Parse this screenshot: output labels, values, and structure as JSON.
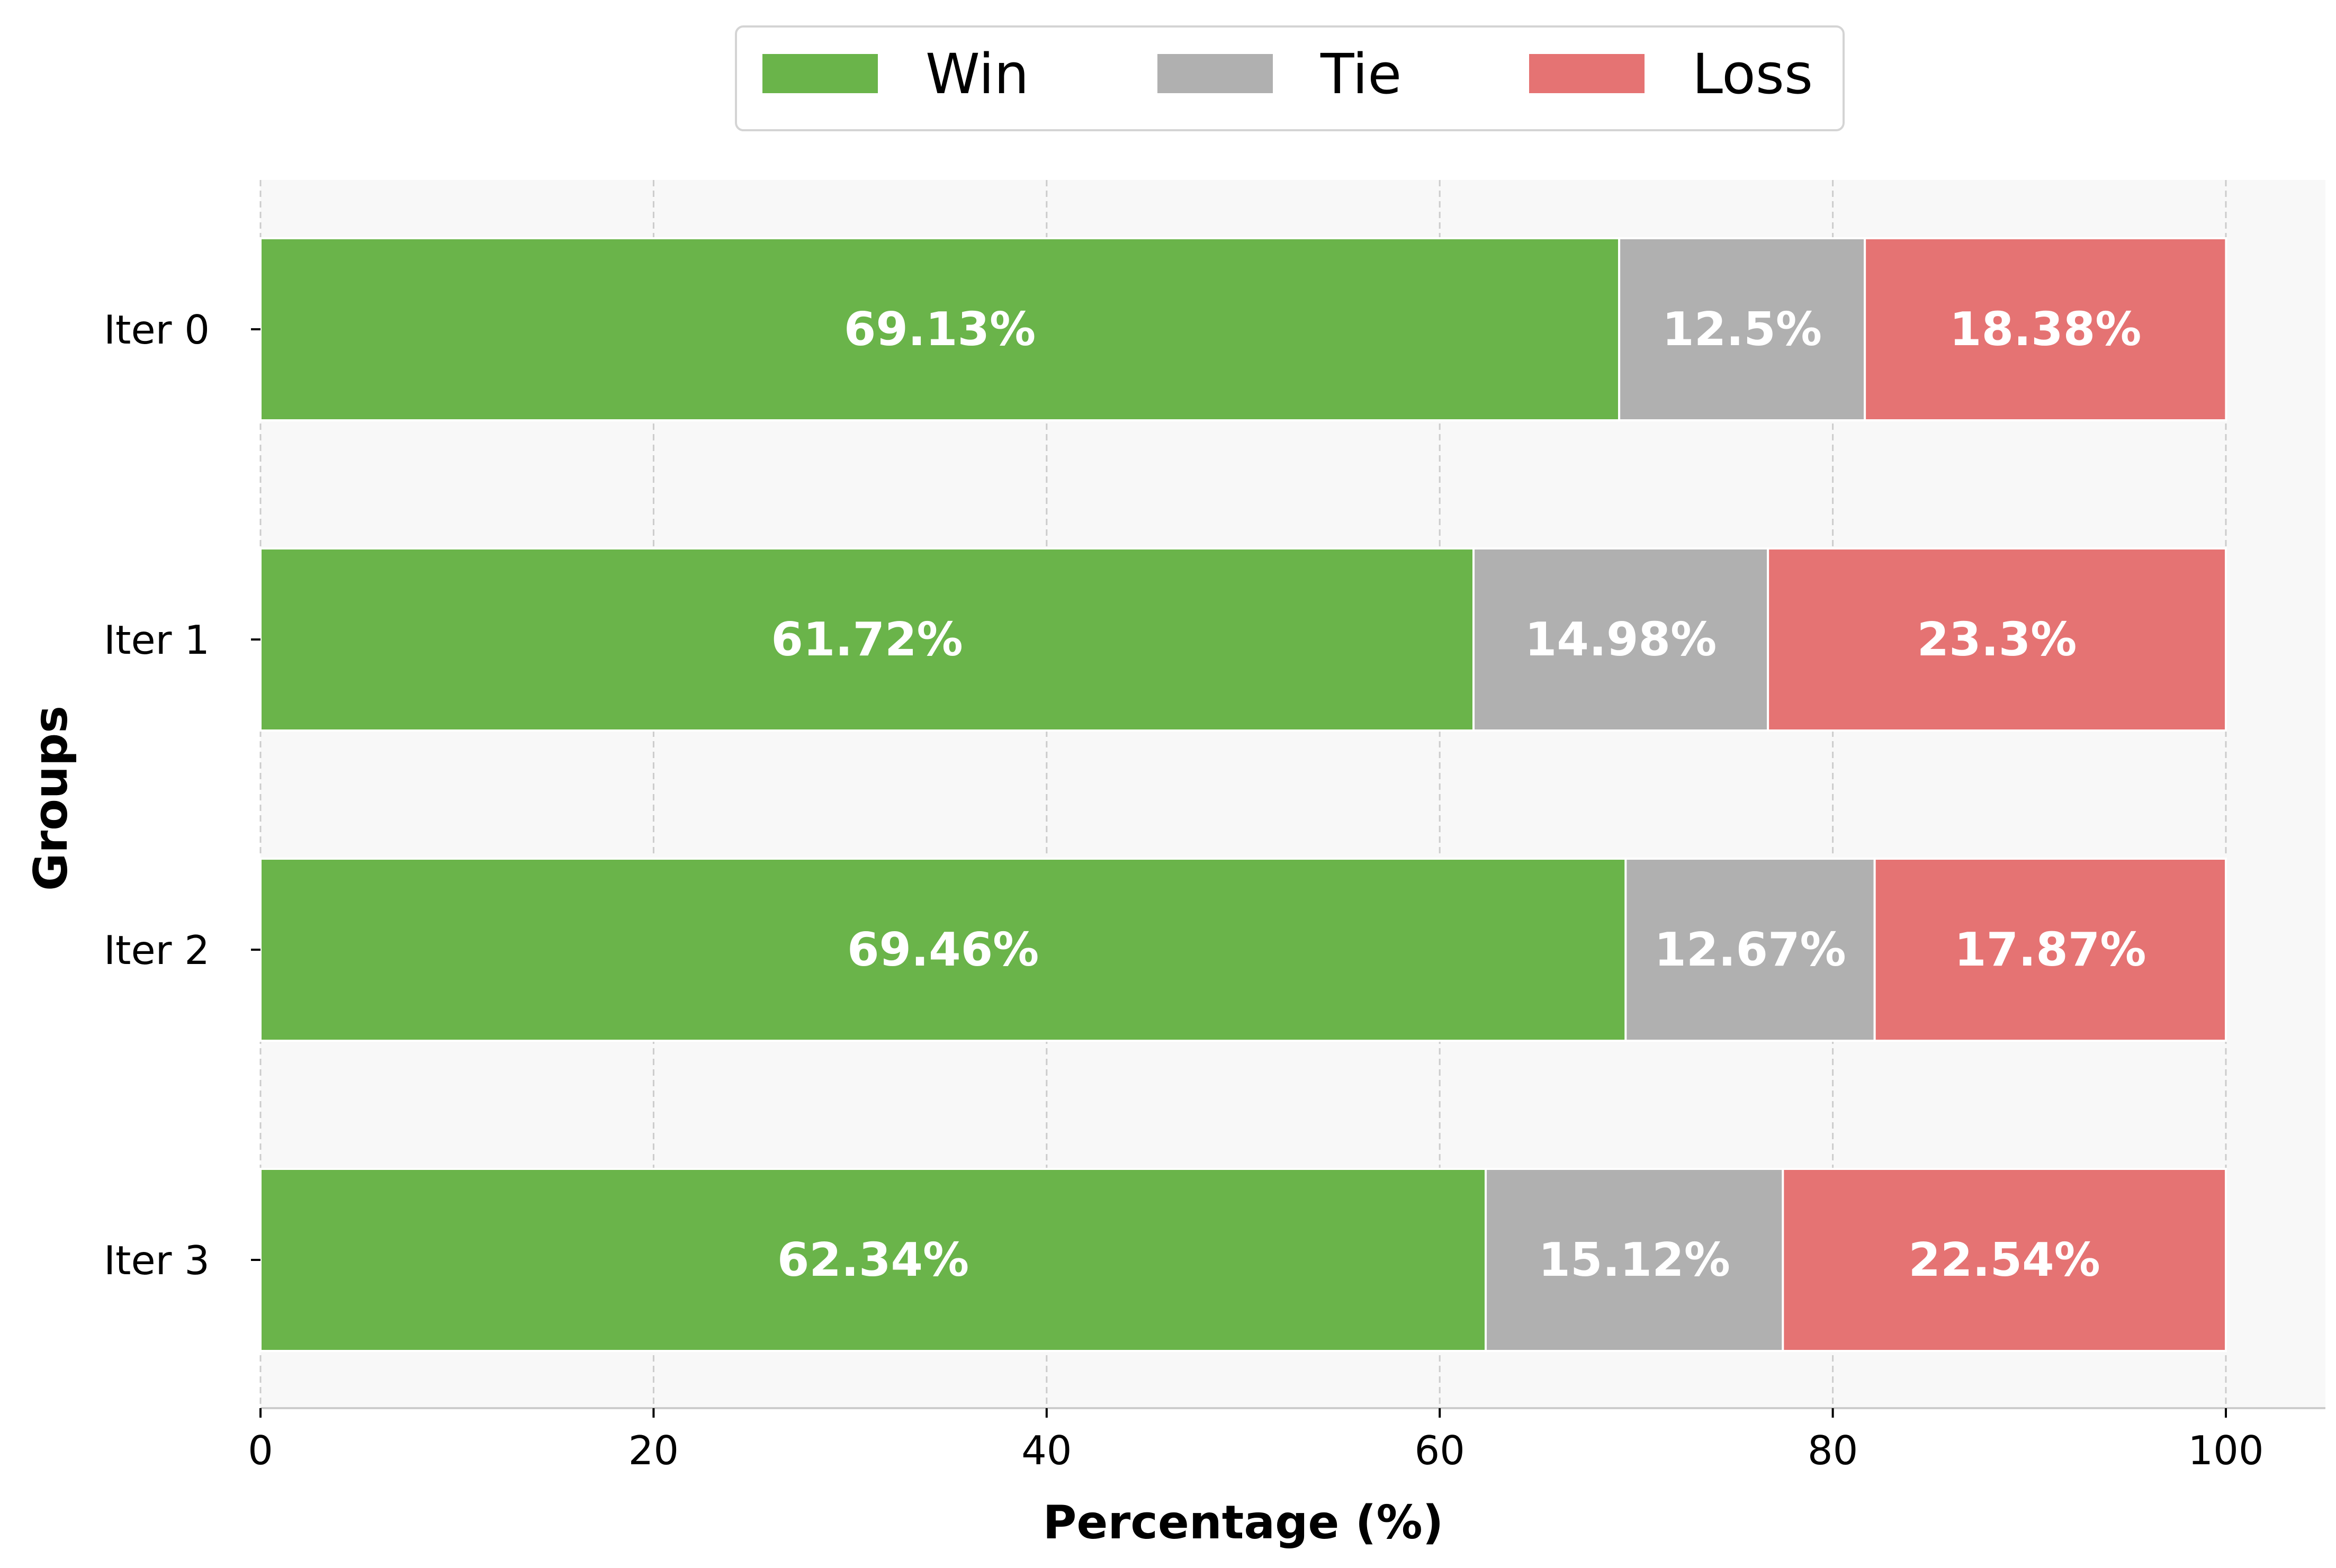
{
  "chart_data": {
    "type": "bar",
    "orientation": "horizontal",
    "stacked": true,
    "categories": [
      "Iter 0",
      "Iter 1",
      "Iter 2",
      "Iter 3"
    ],
    "series": [
      {
        "name": "Win",
        "color": "#6ab44a",
        "values": [
          69.13,
          61.72,
          69.46,
          62.34
        ]
      },
      {
        "name": "Tie",
        "color": "#b0b0b0",
        "values": [
          12.5,
          14.98,
          12.67,
          15.12
        ]
      },
      {
        "name": "Loss",
        "color": "#e57373",
        "values": [
          18.38,
          23.3,
          17.87,
          22.54
        ]
      }
    ],
    "data_labels": [
      [
        "69.13%",
        "12.5%",
        "18.38%"
      ],
      [
        "61.72%",
        "14.98%",
        "23.3%"
      ],
      [
        "69.46%",
        "12.67%",
        "17.87%"
      ],
      [
        "62.34%",
        "15.12%",
        "22.54%"
      ]
    ],
    "xlabel": "Percentage (%)",
    "ylabel": "Groups",
    "xlim": [
      0,
      105
    ],
    "xticks": [
      0,
      20,
      40,
      60,
      80,
      100
    ],
    "grid": {
      "x": true,
      "y": false,
      "style": "dashed"
    },
    "legend": {
      "placement": "top-center",
      "columns": 3
    },
    "colors": {
      "plot_background": "#f8f8f8",
      "grid": "#cccccc",
      "axis": "#cccccc",
      "bar_edge": "#ffffff",
      "label_text": "#ffffff"
    }
  }
}
